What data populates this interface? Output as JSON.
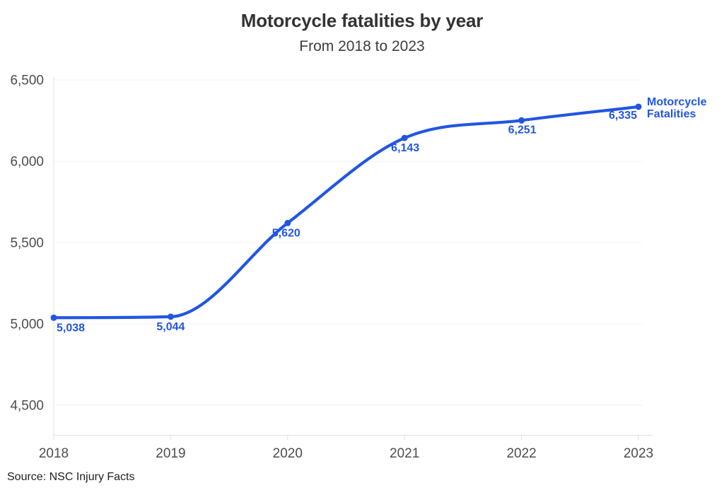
{
  "header": {
    "title": "Motorcycle fatalities by year",
    "subtitle": "From 2018 to 2023"
  },
  "footer": {
    "source": "Source: NSC Injury Facts"
  },
  "colors": {
    "line": "#2156e2",
    "point": "#2156e2",
    "data_label": "#2156e2",
    "series_label": "#2156e2",
    "title_text": "#333333",
    "subtitle_text": "#3d3d3d",
    "axis_text": "#4d4d4d",
    "grid": "#f0f0f0",
    "axis": "#e2e2e2",
    "source_text": "#212121",
    "background": "#ffffff"
  },
  "chart_data": {
    "type": "line",
    "title": "Motorcycle fatalities by year",
    "subtitle": "From 2018 to 2023",
    "x": [
      2018,
      2019,
      2020,
      2021,
      2022,
      2023
    ],
    "xtick_labels": [
      "2018",
      "2019",
      "2020",
      "2021",
      "2022",
      "2023"
    ],
    "series": [
      {
        "name": "Motorcycle Fatalities",
        "values": [
          5038,
          5044,
          5620,
          6143,
          6251,
          6335
        ],
        "point_labels": [
          "5,038",
          "5,044",
          "5,620",
          "6,143",
          "6,251",
          "6,335"
        ]
      }
    ],
    "xlabel": "",
    "ylabel": "",
    "ylim": [
      4500,
      6500
    ],
    "yticks": [
      4500,
      5000,
      5500,
      6000,
      6500
    ],
    "ytick_labels": [
      "4,500",
      "5,000",
      "5,500",
      "6,000",
      "6,500"
    ],
    "grid": "horizontal",
    "curve": "monotone",
    "legend_position": "end-of-line",
    "source": "Source: NSC Injury Facts"
  }
}
